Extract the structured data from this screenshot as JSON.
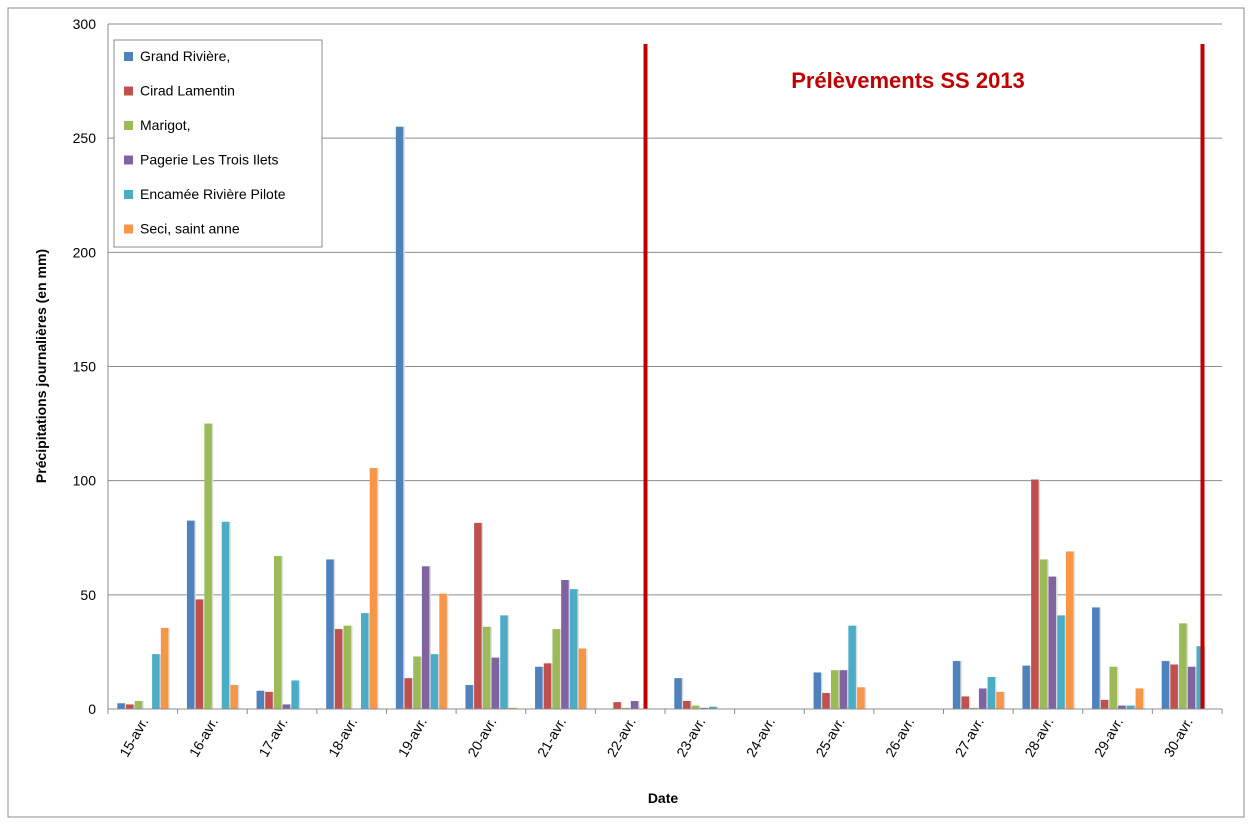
{
  "chart_data": {
    "type": "bar",
    "title": "",
    "annotation": "Prélèvements SS 2013",
    "xlabel": "Date",
    "ylabel": "Précipitations journalières (en mm)",
    "ylim": [
      0,
      300
    ],
    "yticks": [
      0,
      50,
      100,
      150,
      200,
      250,
      300
    ],
    "grid": true,
    "legend_position": "top-left",
    "categories": [
      "15-avr.",
      "16-avr.",
      "17-avr.",
      "18-avr.",
      "19-avr.",
      "20-avr.",
      "21-avr.",
      "22-avr.",
      "23-avr.",
      "24-avr.",
      "25-avr.",
      "26-avr.",
      "27-avr.",
      "28-avr.",
      "29-avr.",
      "30-avr."
    ],
    "series": [
      {
        "name": "Grand Rivière,",
        "color": "#4f81bd",
        "values": [
          2.5,
          82.5,
          8,
          65.5,
          255,
          10.5,
          18.5,
          0,
          13.5,
          0,
          16,
          0,
          21,
          19,
          44.5,
          21
        ]
      },
      {
        "name": "Cirad Lamentin",
        "color": "#c0504d",
        "values": [
          2,
          48,
          7.5,
          35,
          13.5,
          81.5,
          20,
          3,
          3.5,
          0,
          7,
          0,
          5.5,
          100.5,
          4,
          19.5
        ]
      },
      {
        "name": "Marigot,",
        "color": "#9bbb59",
        "values": [
          3.5,
          125,
          67,
          36.5,
          23,
          36,
          35,
          0.5,
          1.5,
          0,
          17,
          0,
          0.5,
          65.5,
          18.5,
          37.5
        ]
      },
      {
        "name": "Pagerie Les Trois Ilets",
        "color": "#8064a2",
        "values": [
          0,
          0,
          2,
          0,
          62.5,
          22.5,
          56.5,
          3.5,
          0.5,
          0,
          17,
          0,
          9,
          58,
          1.5,
          18.5
        ]
      },
      {
        "name": "Encamée Rivière Pilote",
        "color": "#4bacc6",
        "values": [
          24,
          82,
          12.5,
          42,
          24,
          41,
          52.5,
          0,
          1,
          0,
          36.5,
          0,
          14,
          41,
          1.5,
          27.5
        ]
      },
      {
        "name": "Seci, saint anne",
        "color": "#f79646",
        "values": [
          35.5,
          10.5,
          0,
          105.5,
          50.5,
          0.5,
          26.5,
          0,
          0,
          0,
          9.5,
          0,
          7.5,
          69,
          9,
          0
        ]
      }
    ],
    "marker_lines": [
      {
        "position_category": "22-avr.",
        "color": "#c00000"
      },
      {
        "position_category": "30-avr.",
        "color": "#c00000"
      }
    ]
  }
}
